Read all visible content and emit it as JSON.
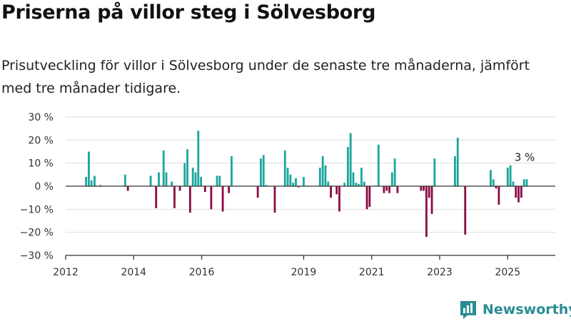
{
  "header": {
    "title": "Priserna på villor steg i Sölvesborg",
    "subtitle": "Prisutveckling för villor i Sölvesborg under de senaste tre månaderna, jämfört med tre månader tidigare."
  },
  "brand": {
    "name": "Newsworthy",
    "icon": "newsworthy-logo-icon",
    "color": "#2a8c93"
  },
  "chart_data": {
    "type": "bar",
    "ylim": [
      -30,
      30
    ],
    "xlim": [
      2012,
      2026.4
    ],
    "y_ticks": [
      {
        "value": 30,
        "label": "30 %"
      },
      {
        "value": 20,
        "label": "20 %"
      },
      {
        "value": 10,
        "label": "10 %"
      },
      {
        "value": 0,
        "label": "0 %"
      },
      {
        "value": -10,
        "label": "−10 %"
      },
      {
        "value": -20,
        "label": "−20 %"
      },
      {
        "value": -30,
        "label": "−30 %"
      }
    ],
    "x_ticks": [
      {
        "value": 2012,
        "label": "2012"
      },
      {
        "value": 2014,
        "label": "2014"
      },
      {
        "value": 2016,
        "label": "2016"
      },
      {
        "value": 2019,
        "label": "2019"
      },
      {
        "value": 2021,
        "label": "2021"
      },
      {
        "value": 2023,
        "label": "2023"
      },
      {
        "value": 2025,
        "label": "2025"
      }
    ],
    "grid": true,
    "positive_color": "#1aa59c",
    "negative_color": "#8c0a45",
    "annotation": {
      "x": 2025.5,
      "y": 3,
      "label": "3 %"
    },
    "points": [
      {
        "x": 2012.6,
        "y": 4
      },
      {
        "x": 2012.68,
        "y": 15
      },
      {
        "x": 2012.76,
        "y": 2.5
      },
      {
        "x": 2012.85,
        "y": 4.5
      },
      {
        "x": 2013.02,
        "y": 0.5
      },
      {
        "x": 2013.75,
        "y": 5
      },
      {
        "x": 2013.83,
        "y": -2
      },
      {
        "x": 2014.5,
        "y": 4.5
      },
      {
        "x": 2014.66,
        "y": -9.5
      },
      {
        "x": 2014.74,
        "y": 6
      },
      {
        "x": 2014.88,
        "y": 15.5
      },
      {
        "x": 2014.96,
        "y": 6
      },
      {
        "x": 2015.12,
        "y": 2
      },
      {
        "x": 2015.2,
        "y": -9.5
      },
      {
        "x": 2015.36,
        "y": -2
      },
      {
        "x": 2015.5,
        "y": 10
      },
      {
        "x": 2015.58,
        "y": 16
      },
      {
        "x": 2015.66,
        "y": -11.5
      },
      {
        "x": 2015.74,
        "y": 8
      },
      {
        "x": 2015.82,
        "y": 6
      },
      {
        "x": 2015.9,
        "y": 24
      },
      {
        "x": 2015.98,
        "y": 4
      },
      {
        "x": 2016.1,
        "y": -2.5
      },
      {
        "x": 2016.28,
        "y": -10
      },
      {
        "x": 2016.45,
        "y": 4.5
      },
      {
        "x": 2016.53,
        "y": 4.5
      },
      {
        "x": 2016.62,
        "y": -11
      },
      {
        "x": 2016.8,
        "y": -3
      },
      {
        "x": 2016.88,
        "y": 13
      },
      {
        "x": 2017.65,
        "y": -5
      },
      {
        "x": 2017.74,
        "y": 12
      },
      {
        "x": 2017.82,
        "y": 13.5
      },
      {
        "x": 2017.9,
        "y": 0.5
      },
      {
        "x": 2018.15,
        "y": -11.5
      },
      {
        "x": 2018.45,
        "y": 15.5
      },
      {
        "x": 2018.53,
        "y": 8
      },
      {
        "x": 2018.61,
        "y": 5
      },
      {
        "x": 2018.69,
        "y": 1.5
      },
      {
        "x": 2018.77,
        "y": 3.5
      },
      {
        "x": 2018.85,
        "y": -0.5
      },
      {
        "x": 2019.0,
        "y": 4
      },
      {
        "x": 2019.48,
        "y": 8
      },
      {
        "x": 2019.56,
        "y": 13
      },
      {
        "x": 2019.64,
        "y": 9
      },
      {
        "x": 2019.72,
        "y": 2
      },
      {
        "x": 2019.8,
        "y": -5
      },
      {
        "x": 2019.97,
        "y": -3.5
      },
      {
        "x": 2020.05,
        "y": -11
      },
      {
        "x": 2020.2,
        "y": 1.5
      },
      {
        "x": 2020.3,
        "y": 17
      },
      {
        "x": 2020.38,
        "y": 23
      },
      {
        "x": 2020.46,
        "y": 6
      },
      {
        "x": 2020.54,
        "y": 1.5
      },
      {
        "x": 2020.62,
        "y": 1
      },
      {
        "x": 2020.7,
        "y": 8
      },
      {
        "x": 2020.78,
        "y": 2
      },
      {
        "x": 2020.86,
        "y": -10
      },
      {
        "x": 2020.94,
        "y": -9
      },
      {
        "x": 2021.2,
        "y": 18
      },
      {
        "x": 2021.36,
        "y": -3
      },
      {
        "x": 2021.44,
        "y": -2
      },
      {
        "x": 2021.52,
        "y": -3
      },
      {
        "x": 2021.6,
        "y": 6
      },
      {
        "x": 2021.68,
        "y": 12
      },
      {
        "x": 2021.76,
        "y": -3
      },
      {
        "x": 2022.45,
        "y": -2
      },
      {
        "x": 2022.53,
        "y": -2
      },
      {
        "x": 2022.61,
        "y": -22
      },
      {
        "x": 2022.69,
        "y": -5
      },
      {
        "x": 2022.77,
        "y": -12
      },
      {
        "x": 2022.85,
        "y": 12
      },
      {
        "x": 2023.45,
        "y": 13
      },
      {
        "x": 2023.53,
        "y": 21
      },
      {
        "x": 2023.75,
        "y": -21
      },
      {
        "x": 2024.5,
        "y": 7
      },
      {
        "x": 2024.58,
        "y": 3
      },
      {
        "x": 2024.66,
        "y": -1
      },
      {
        "x": 2024.74,
        "y": -8
      },
      {
        "x": 2025.0,
        "y": 8
      },
      {
        "x": 2025.08,
        "y": 9
      },
      {
        "x": 2025.16,
        "y": 2
      },
      {
        "x": 2025.24,
        "y": -5
      },
      {
        "x": 2025.32,
        "y": -7
      },
      {
        "x": 2025.4,
        "y": -5
      },
      {
        "x": 2025.48,
        "y": 3
      },
      {
        "x": 2025.56,
        "y": 3
      }
    ]
  }
}
